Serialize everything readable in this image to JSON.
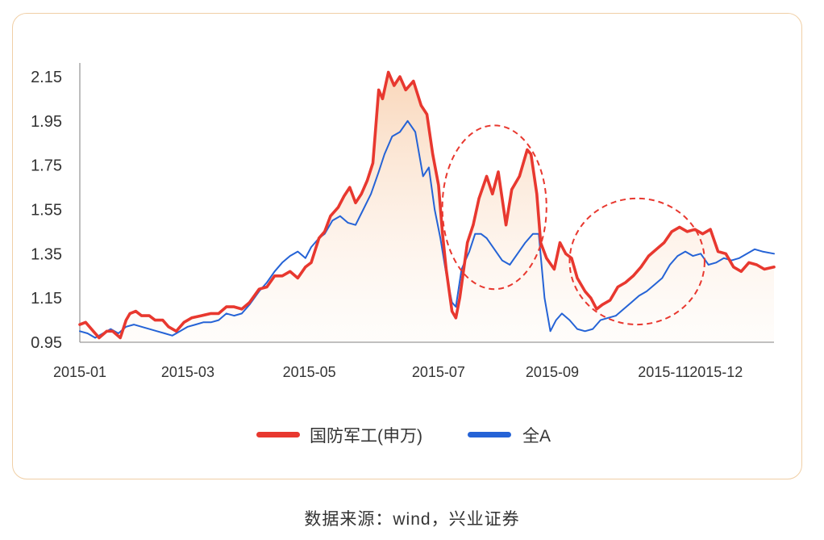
{
  "source_text": "数据来源：wind，兴业证券",
  "colors": {
    "series_red": "#e8382f",
    "series_blue": "#2563d6",
    "card_border": "#f0cfa6",
    "area_fill_top": "#f7c9a3",
    "highlight_circle": "#e8382f"
  },
  "chart_data": {
    "type": "line",
    "title": "",
    "xlabel": "",
    "ylabel": "",
    "ylim": [
      0.95,
      2.15
    ],
    "yticks": [
      "2.15",
      "1.95",
      "1.75",
      "1.55",
      "1.35",
      "1.15",
      "0.95"
    ],
    "xticks": [
      {
        "label": "2015-01",
        "date": "2015-01-05"
      },
      {
        "label": "2015-03",
        "date": "2015-03-02"
      },
      {
        "label": "2015-05",
        "date": "2015-05-04"
      },
      {
        "label": "2015-07",
        "date": "2015-07-10"
      },
      {
        "label": "2015-09",
        "date": "2015-09-07"
      },
      {
        "label": "2015-11",
        "date": "2015-11-04"
      },
      {
        "label": "2015-12",
        "date": "2015-12-01"
      }
    ],
    "xlim": [
      "2015-01-05",
      "2015-12-31"
    ],
    "legend_position": "bottom-center",
    "grid": false,
    "highlights": [
      {
        "center_date": "2015-08-08",
        "center_value": 1.56,
        "rx_days": 27,
        "ry_value": 0.37
      },
      {
        "center_date": "2015-10-21",
        "center_value": 1.315,
        "rx_days": 35,
        "ry_value": 0.285
      }
    ],
    "series": [
      {
        "name": "国防军工(申万)",
        "color": "#e8382f",
        "filled": true,
        "points": [
          [
            "2015-01-05",
            1.03
          ],
          [
            "2015-01-08",
            1.04
          ],
          [
            "2015-01-12",
            1.0
          ],
          [
            "2015-01-15",
            0.97
          ],
          [
            "2015-01-19",
            1.0
          ],
          [
            "2015-01-22",
            1.0
          ],
          [
            "2015-01-26",
            0.97
          ],
          [
            "2015-01-29",
            1.05
          ],
          [
            "2015-01-31",
            1.08
          ],
          [
            "2015-02-03",
            1.09
          ],
          [
            "2015-02-06",
            1.07
          ],
          [
            "2015-02-10",
            1.07
          ],
          [
            "2015-02-13",
            1.05
          ],
          [
            "2015-02-17",
            1.05
          ],
          [
            "2015-02-20",
            1.02
          ],
          [
            "2015-02-24",
            1.0
          ],
          [
            "2015-02-28",
            1.04
          ],
          [
            "2015-03-04",
            1.06
          ],
          [
            "2015-03-09",
            1.07
          ],
          [
            "2015-03-14",
            1.08
          ],
          [
            "2015-03-18",
            1.08
          ],
          [
            "2015-03-22",
            1.11
          ],
          [
            "2015-03-26",
            1.11
          ],
          [
            "2015-03-30",
            1.1
          ],
          [
            "2015-04-03",
            1.13
          ],
          [
            "2015-04-08",
            1.19
          ],
          [
            "2015-04-12",
            1.2
          ],
          [
            "2015-04-16",
            1.25
          ],
          [
            "2015-04-20",
            1.25
          ],
          [
            "2015-04-24",
            1.27
          ],
          [
            "2015-04-28",
            1.24
          ],
          [
            "2015-05-02",
            1.29
          ],
          [
            "2015-05-05",
            1.31
          ],
          [
            "2015-05-09",
            1.42
          ],
          [
            "2015-05-12",
            1.45
          ],
          [
            "2015-05-15",
            1.52
          ],
          [
            "2015-05-19",
            1.56
          ],
          [
            "2015-05-22",
            1.61
          ],
          [
            "2015-05-25",
            1.65
          ],
          [
            "2015-05-28",
            1.58
          ],
          [
            "2015-05-31",
            1.62
          ],
          [
            "2015-06-03",
            1.68
          ],
          [
            "2015-06-06",
            1.76
          ],
          [
            "2015-06-09",
            2.09
          ],
          [
            "2015-06-11",
            2.05
          ],
          [
            "2015-06-14",
            2.17
          ],
          [
            "2015-06-17",
            2.11
          ],
          [
            "2015-06-20",
            2.15
          ],
          [
            "2015-06-23",
            2.09
          ],
          [
            "2015-06-27",
            2.13
          ],
          [
            "2015-07-01",
            2.02
          ],
          [
            "2015-07-04",
            1.98
          ],
          [
            "2015-07-07",
            1.8
          ],
          [
            "2015-07-10",
            1.66
          ],
          [
            "2015-07-12",
            1.45
          ],
          [
            "2015-07-14",
            1.28
          ],
          [
            "2015-07-17",
            1.09
          ],
          [
            "2015-07-19",
            1.06
          ],
          [
            "2015-07-21",
            1.15
          ],
          [
            "2015-07-25",
            1.4
          ],
          [
            "2015-07-28",
            1.48
          ],
          [
            "2015-07-31",
            1.6
          ],
          [
            "2015-08-04",
            1.7
          ],
          [
            "2015-08-07",
            1.62
          ],
          [
            "2015-08-10",
            1.72
          ],
          [
            "2015-08-14",
            1.48
          ],
          [
            "2015-08-17",
            1.64
          ],
          [
            "2015-08-21",
            1.7
          ],
          [
            "2015-08-25",
            1.82
          ],
          [
            "2015-08-27",
            1.8
          ],
          [
            "2015-08-30",
            1.62
          ],
          [
            "2015-09-01",
            1.4
          ],
          [
            "2015-09-04",
            1.33
          ],
          [
            "2015-09-08",
            1.28
          ],
          [
            "2015-09-11",
            1.4
          ],
          [
            "2015-09-14",
            1.35
          ],
          [
            "2015-09-17",
            1.33
          ],
          [
            "2015-09-20",
            1.24
          ],
          [
            "2015-09-24",
            1.18
          ],
          [
            "2015-09-27",
            1.15
          ],
          [
            "2015-09-30",
            1.1
          ],
          [
            "2015-10-03",
            1.12
          ],
          [
            "2015-10-07",
            1.14
          ],
          [
            "2015-10-11",
            1.2
          ],
          [
            "2015-10-15",
            1.22
          ],
          [
            "2015-10-19",
            1.25
          ],
          [
            "2015-10-23",
            1.29
          ],
          [
            "2015-10-27",
            1.34
          ],
          [
            "2015-10-31",
            1.37
          ],
          [
            "2015-11-04",
            1.4
          ],
          [
            "2015-11-08",
            1.45
          ],
          [
            "2015-11-12",
            1.47
          ],
          [
            "2015-11-16",
            1.45
          ],
          [
            "2015-11-20",
            1.46
          ],
          [
            "2015-11-24",
            1.44
          ],
          [
            "2015-11-28",
            1.46
          ],
          [
            "2015-12-02",
            1.36
          ],
          [
            "2015-12-06",
            1.35
          ],
          [
            "2015-12-10",
            1.29
          ],
          [
            "2015-12-14",
            1.27
          ],
          [
            "2015-12-18",
            1.31
          ],
          [
            "2015-12-22",
            1.3
          ],
          [
            "2015-12-26",
            1.28
          ],
          [
            "2015-12-31",
            1.29
          ]
        ]
      },
      {
        "name": "全A",
        "color": "#2563d6",
        "filled": false,
        "points": [
          [
            "2015-01-05",
            1.0
          ],
          [
            "2015-01-09",
            0.99
          ],
          [
            "2015-01-13",
            0.97
          ],
          [
            "2015-01-17",
            0.99
          ],
          [
            "2015-01-21",
            1.01
          ],
          [
            "2015-01-25",
            0.99
          ],
          [
            "2015-01-29",
            1.02
          ],
          [
            "2015-02-02",
            1.03
          ],
          [
            "2015-02-06",
            1.02
          ],
          [
            "2015-02-10",
            1.01
          ],
          [
            "2015-02-14",
            1.0
          ],
          [
            "2015-02-18",
            0.99
          ],
          [
            "2015-02-22",
            0.98
          ],
          [
            "2015-02-26",
            1.0
          ],
          [
            "2015-03-02",
            1.02
          ],
          [
            "2015-03-06",
            1.03
          ],
          [
            "2015-03-10",
            1.04
          ],
          [
            "2015-03-14",
            1.04
          ],
          [
            "2015-03-18",
            1.05
          ],
          [
            "2015-03-22",
            1.08
          ],
          [
            "2015-03-26",
            1.07
          ],
          [
            "2015-03-30",
            1.08
          ],
          [
            "2015-04-03",
            1.12
          ],
          [
            "2015-04-08",
            1.18
          ],
          [
            "2015-04-12",
            1.22
          ],
          [
            "2015-04-16",
            1.27
          ],
          [
            "2015-04-20",
            1.31
          ],
          [
            "2015-04-24",
            1.34
          ],
          [
            "2015-04-28",
            1.36
          ],
          [
            "2015-05-02",
            1.33
          ],
          [
            "2015-05-05",
            1.38
          ],
          [
            "2015-05-09",
            1.42
          ],
          [
            "2015-05-12",
            1.44
          ],
          [
            "2015-05-16",
            1.5
          ],
          [
            "2015-05-20",
            1.52
          ],
          [
            "2015-05-24",
            1.49
          ],
          [
            "2015-05-28",
            1.48
          ],
          [
            "2015-06-01",
            1.55
          ],
          [
            "2015-06-05",
            1.62
          ],
          [
            "2015-06-09",
            1.72
          ],
          [
            "2015-06-12",
            1.8
          ],
          [
            "2015-06-16",
            1.88
          ],
          [
            "2015-06-20",
            1.9
          ],
          [
            "2015-06-24",
            1.95
          ],
          [
            "2015-06-28",
            1.9
          ],
          [
            "2015-07-02",
            1.7
          ],
          [
            "2015-07-05",
            1.74
          ],
          [
            "2015-07-08",
            1.55
          ],
          [
            "2015-07-11",
            1.42
          ],
          [
            "2015-07-14",
            1.26
          ],
          [
            "2015-07-17",
            1.13
          ],
          [
            "2015-07-19",
            1.11
          ],
          [
            "2015-07-22",
            1.28
          ],
          [
            "2015-07-26",
            1.36
          ],
          [
            "2015-07-29",
            1.44
          ],
          [
            "2015-08-01",
            1.44
          ],
          [
            "2015-08-04",
            1.42
          ],
          [
            "2015-08-08",
            1.37
          ],
          [
            "2015-08-12",
            1.32
          ],
          [
            "2015-08-16",
            1.3
          ],
          [
            "2015-08-20",
            1.35
          ],
          [
            "2015-08-24",
            1.4
          ],
          [
            "2015-08-28",
            1.44
          ],
          [
            "2015-08-31",
            1.44
          ],
          [
            "2015-09-03",
            1.15
          ],
          [
            "2015-09-06",
            1.0
          ],
          [
            "2015-09-09",
            1.05
          ],
          [
            "2015-09-12",
            1.08
          ],
          [
            "2015-09-16",
            1.05
          ],
          [
            "2015-09-20",
            1.01
          ],
          [
            "2015-09-24",
            1.0
          ],
          [
            "2015-09-28",
            1.01
          ],
          [
            "2015-10-02",
            1.05
          ],
          [
            "2015-10-06",
            1.06
          ],
          [
            "2015-10-10",
            1.07
          ],
          [
            "2015-10-14",
            1.1
          ],
          [
            "2015-10-18",
            1.13
          ],
          [
            "2015-10-22",
            1.16
          ],
          [
            "2015-10-26",
            1.18
          ],
          [
            "2015-10-30",
            1.21
          ],
          [
            "2015-11-03",
            1.24
          ],
          [
            "2015-11-07",
            1.3
          ],
          [
            "2015-11-11",
            1.34
          ],
          [
            "2015-11-15",
            1.36
          ],
          [
            "2015-11-19",
            1.34
          ],
          [
            "2015-11-23",
            1.35
          ],
          [
            "2015-11-27",
            1.3
          ],
          [
            "2015-12-01",
            1.31
          ],
          [
            "2015-12-05",
            1.33
          ],
          [
            "2015-12-09",
            1.32
          ],
          [
            "2015-12-13",
            1.33
          ],
          [
            "2015-12-17",
            1.35
          ],
          [
            "2015-12-21",
            1.37
          ],
          [
            "2015-12-25",
            1.36
          ],
          [
            "2015-12-31",
            1.35
          ]
        ]
      }
    ]
  }
}
